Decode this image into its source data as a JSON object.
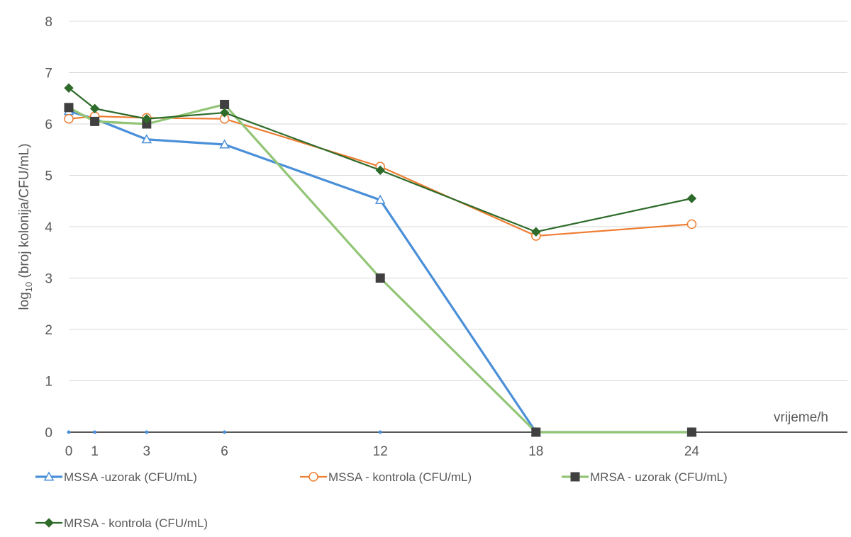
{
  "chart_data": {
    "type": "line",
    "title": "",
    "xlabel": "vrijeme/h",
    "ylabel_prefix": "log",
    "ylabel_sub": "10",
    "ylabel_rest": " (broj kolonija/CFU/mL)",
    "x": [
      0,
      1,
      3,
      6,
      12,
      18,
      24
    ],
    "xlim": [
      0,
      30
    ],
    "ylim": [
      0,
      8
    ],
    "yticks": [
      0,
      1,
      2,
      3,
      4,
      5,
      6,
      7,
      8
    ],
    "grid": true,
    "legend_position": "bottom",
    "series": [
      {
        "name": "MSSA -uzorak (CFU/mL)",
        "color": "#4a8fd8",
        "marker": "triangle-open",
        "values": [
          6.25,
          6.1,
          5.7,
          5.6,
          4.52,
          0,
          0
        ]
      },
      {
        "name": "MSSA - kontrola (CFU/mL)",
        "color": "#ed7d31",
        "marker": "circle-open",
        "values": [
          6.1,
          6.15,
          6.12,
          6.1,
          5.17,
          3.82,
          4.05
        ]
      },
      {
        "name": "MRSA - uzorak (CFU/mL)",
        "color": "#92c576",
        "marker": "square-dark",
        "values": [
          6.32,
          6.05,
          6.0,
          6.38,
          3.0,
          0,
          0
        ]
      },
      {
        "name": "MRSA - kontrola (CFU/mL)",
        "color": "#2e6b2a",
        "marker": "diamond",
        "values": [
          6.7,
          6.3,
          6.1,
          6.22,
          5.1,
          3.9,
          4.55
        ]
      }
    ]
  }
}
